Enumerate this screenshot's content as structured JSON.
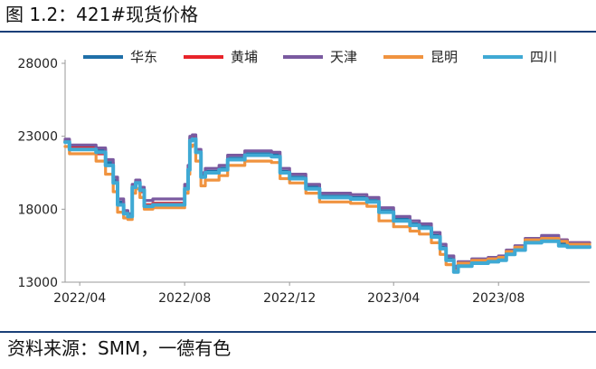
{
  "figure": {
    "title": "图 1.2：421#现货价格",
    "source": "资料来源：SMM，一德有色"
  },
  "chart_data": {
    "type": "line",
    "xlabel": "",
    "ylabel": "",
    "x_range": [
      "2022-03-15",
      "2023-11-15"
    ],
    "x_ticks": [
      "2022/04",
      "2022/08",
      "2022/12",
      "2023/04",
      "2023/08"
    ],
    "x_tick_dates": [
      "2022-04-01",
      "2022-08-01",
      "2022-12-01",
      "2023-04-01",
      "2023-08-01"
    ],
    "ylim": [
      13000,
      28000
    ],
    "y_ticks": [
      "28000",
      "23000",
      "18000",
      "13000"
    ],
    "y_tick_values": [
      28000,
      23000,
      18000,
      13000
    ],
    "legend_position": "top",
    "series": [
      {
        "name": "华东",
        "color": "#1f6fa8",
        "points": [
          [
            "2022-03-15",
            22700
          ],
          [
            "2022-03-20",
            22300
          ],
          [
            "2022-04-20",
            22100
          ],
          [
            "2022-05-01",
            21200
          ],
          [
            "2022-05-10",
            20000
          ],
          [
            "2022-05-15",
            18500
          ],
          [
            "2022-05-22",
            17800
          ],
          [
            "2022-05-27",
            17600
          ],
          [
            "2022-06-01",
            19600
          ],
          [
            "2022-06-05",
            19900
          ],
          [
            "2022-06-10",
            19400
          ],
          [
            "2022-06-15",
            18300
          ],
          [
            "2022-06-25",
            18400
          ],
          [
            "2022-07-27",
            18400
          ],
          [
            "2022-08-01",
            19500
          ],
          [
            "2022-08-05",
            20800
          ],
          [
            "2022-08-07",
            22900
          ],
          [
            "2022-08-10",
            23000
          ],
          [
            "2022-08-14",
            22000
          ],
          [
            "2022-08-20",
            20300
          ],
          [
            "2022-08-25",
            20600
          ],
          [
            "2022-09-10",
            20800
          ],
          [
            "2022-09-20",
            21500
          ],
          [
            "2022-10-10",
            21800
          ],
          [
            "2022-11-10",
            21700
          ],
          [
            "2022-11-20",
            20600
          ],
          [
            "2022-12-01",
            20200
          ],
          [
            "2022-12-20",
            19500
          ],
          [
            "2023-01-05",
            18900
          ],
          [
            "2023-02-10",
            18800
          ],
          [
            "2023-03-01",
            18600
          ],
          [
            "2023-03-15",
            17900
          ],
          [
            "2023-04-01",
            17300
          ],
          [
            "2023-04-20",
            17000
          ],
          [
            "2023-05-01",
            16800
          ],
          [
            "2023-05-15",
            16200
          ],
          [
            "2023-05-25",
            15400
          ],
          [
            "2023-06-01",
            14600
          ],
          [
            "2023-06-10",
            13900
          ],
          [
            "2023-06-15",
            14200
          ],
          [
            "2023-07-01",
            14400
          ],
          [
            "2023-07-20",
            14500
          ],
          [
            "2023-08-01",
            14600
          ],
          [
            "2023-08-10",
            15000
          ],
          [
            "2023-08-20",
            15300
          ],
          [
            "2023-09-01",
            15800
          ],
          [
            "2023-09-20",
            16000
          ],
          [
            "2023-10-10",
            15700
          ],
          [
            "2023-10-20",
            15500
          ],
          [
            "2023-11-15",
            15500
          ]
        ]
      },
      {
        "name": "黄埔",
        "color": "#e8242a",
        "points": [
          [
            "2022-03-15",
            22700
          ],
          [
            "2022-03-20",
            22200
          ],
          [
            "2022-04-20",
            21800
          ],
          [
            "2022-05-01",
            21000
          ],
          [
            "2022-05-10",
            19800
          ],
          [
            "2022-05-15",
            18300
          ],
          [
            "2022-05-22",
            17700
          ],
          [
            "2022-05-27",
            17500
          ],
          [
            "2022-06-01",
            19500
          ],
          [
            "2022-06-05",
            19800
          ],
          [
            "2022-06-10",
            19200
          ],
          [
            "2022-06-15",
            18300
          ],
          [
            "2022-06-25",
            18400
          ],
          [
            "2022-07-27",
            18400
          ],
          [
            "2022-08-01",
            19400
          ],
          [
            "2022-08-05",
            20700
          ],
          [
            "2022-08-07",
            22800
          ],
          [
            "2022-08-10",
            22900
          ],
          [
            "2022-08-14",
            21900
          ],
          [
            "2022-08-20",
            20200
          ],
          [
            "2022-08-25",
            20500
          ],
          [
            "2022-09-10",
            20700
          ],
          [
            "2022-09-20",
            21400
          ],
          [
            "2022-10-10",
            21700
          ],
          [
            "2022-11-10",
            21600
          ],
          [
            "2022-11-20",
            20500
          ],
          [
            "2022-12-01",
            20100
          ],
          [
            "2022-12-20",
            19400
          ],
          [
            "2023-01-05",
            18800
          ],
          [
            "2023-02-10",
            18700
          ],
          [
            "2023-03-01",
            18500
          ],
          [
            "2023-03-15",
            17800
          ],
          [
            "2023-04-01",
            17200
          ],
          [
            "2023-04-20",
            16900
          ],
          [
            "2023-05-01",
            16700
          ],
          [
            "2023-05-15",
            16100
          ],
          [
            "2023-05-25",
            15300
          ],
          [
            "2023-06-01",
            14500
          ],
          [
            "2023-06-10",
            13900
          ],
          [
            "2023-06-15",
            14200
          ],
          [
            "2023-07-01",
            14400
          ],
          [
            "2023-07-20",
            14500
          ],
          [
            "2023-08-01",
            14600
          ],
          [
            "2023-08-10",
            15000
          ],
          [
            "2023-08-20",
            15300
          ],
          [
            "2023-09-01",
            15900
          ],
          [
            "2023-09-20",
            16100
          ],
          [
            "2023-10-10",
            15900
          ],
          [
            "2023-10-20",
            15700
          ],
          [
            "2023-11-15",
            15700
          ]
        ]
      },
      {
        "name": "天津",
        "color": "#7a5aa0",
        "points": [
          [
            "2022-03-15",
            22800
          ],
          [
            "2022-03-20",
            22400
          ],
          [
            "2022-04-20",
            22200
          ],
          [
            "2022-05-01",
            21400
          ],
          [
            "2022-05-10",
            20200
          ],
          [
            "2022-05-15",
            18700
          ],
          [
            "2022-05-22",
            17900
          ],
          [
            "2022-05-27",
            17700
          ],
          [
            "2022-06-01",
            19700
          ],
          [
            "2022-06-05",
            20000
          ],
          [
            "2022-06-10",
            19500
          ],
          [
            "2022-06-15",
            18600
          ],
          [
            "2022-06-25",
            18700
          ],
          [
            "2022-07-27",
            18700
          ],
          [
            "2022-08-01",
            19700
          ],
          [
            "2022-08-05",
            21000
          ],
          [
            "2022-08-07",
            23000
          ],
          [
            "2022-08-10",
            23100
          ],
          [
            "2022-08-14",
            22100
          ],
          [
            "2022-08-20",
            20500
          ],
          [
            "2022-08-25",
            20800
          ],
          [
            "2022-09-10",
            21000
          ],
          [
            "2022-09-20",
            21700
          ],
          [
            "2022-10-10",
            22000
          ],
          [
            "2022-11-10",
            21900
          ],
          [
            "2022-11-20",
            20800
          ],
          [
            "2022-12-01",
            20400
          ],
          [
            "2022-12-20",
            19700
          ],
          [
            "2023-01-05",
            19100
          ],
          [
            "2023-02-10",
            19000
          ],
          [
            "2023-03-01",
            18800
          ],
          [
            "2023-03-15",
            18100
          ],
          [
            "2023-04-01",
            17500
          ],
          [
            "2023-04-20",
            17200
          ],
          [
            "2023-05-01",
            17000
          ],
          [
            "2023-05-15",
            16400
          ],
          [
            "2023-05-25",
            15600
          ],
          [
            "2023-06-01",
            14800
          ],
          [
            "2023-06-10",
            14100
          ],
          [
            "2023-06-15",
            14400
          ],
          [
            "2023-07-01",
            14600
          ],
          [
            "2023-07-20",
            14700
          ],
          [
            "2023-08-01",
            14800
          ],
          [
            "2023-08-10",
            15200
          ],
          [
            "2023-08-20",
            15500
          ],
          [
            "2023-09-01",
            16000
          ],
          [
            "2023-09-20",
            16200
          ],
          [
            "2023-10-10",
            15900
          ],
          [
            "2023-10-20",
            15700
          ],
          [
            "2023-11-15",
            15700
          ]
        ]
      },
      {
        "name": "昆明",
        "color": "#f0933f",
        "points": [
          [
            "2022-03-15",
            22300
          ],
          [
            "2022-03-20",
            21800
          ],
          [
            "2022-04-20",
            21300
          ],
          [
            "2022-05-01",
            20400
          ],
          [
            "2022-05-10",
            19200
          ],
          [
            "2022-05-15",
            17800
          ],
          [
            "2022-05-22",
            17400
          ],
          [
            "2022-05-27",
            17300
          ],
          [
            "2022-06-01",
            19100
          ],
          [
            "2022-06-05",
            19400
          ],
          [
            "2022-06-10",
            18800
          ],
          [
            "2022-06-15",
            18000
          ],
          [
            "2022-06-25",
            18100
          ],
          [
            "2022-07-27",
            18100
          ],
          [
            "2022-08-01",
            19100
          ],
          [
            "2022-08-05",
            20400
          ],
          [
            "2022-08-07",
            22300
          ],
          [
            "2022-08-10",
            22400
          ],
          [
            "2022-08-14",
            21300
          ],
          [
            "2022-08-20",
            19600
          ],
          [
            "2022-08-25",
            20000
          ],
          [
            "2022-09-10",
            20300
          ],
          [
            "2022-09-20",
            21000
          ],
          [
            "2022-10-10",
            21300
          ],
          [
            "2022-11-10",
            21200
          ],
          [
            "2022-11-20",
            20100
          ],
          [
            "2022-12-01",
            19800
          ],
          [
            "2022-12-20",
            19100
          ],
          [
            "2023-01-05",
            18500
          ],
          [
            "2023-02-10",
            18400
          ],
          [
            "2023-03-01",
            18200
          ],
          [
            "2023-03-15",
            17200
          ],
          [
            "2023-04-01",
            16800
          ],
          [
            "2023-04-20",
            16500
          ],
          [
            "2023-05-01",
            16300
          ],
          [
            "2023-05-15",
            15700
          ],
          [
            "2023-05-25",
            14900
          ],
          [
            "2023-06-01",
            14200
          ],
          [
            "2023-06-10",
            13800
          ],
          [
            "2023-06-15",
            14300
          ],
          [
            "2023-07-01",
            14500
          ],
          [
            "2023-07-20",
            14600
          ],
          [
            "2023-08-01",
            14700
          ],
          [
            "2023-08-10",
            15100
          ],
          [
            "2023-08-20",
            15400
          ],
          [
            "2023-09-01",
            15900
          ],
          [
            "2023-09-20",
            16000
          ],
          [
            "2023-10-10",
            15800
          ],
          [
            "2023-10-20",
            15600
          ],
          [
            "2023-11-15",
            15600
          ]
        ]
      },
      {
        "name": "四川",
        "color": "#3fa9d4",
        "points": [
          [
            "2022-03-15",
            22600
          ],
          [
            "2022-03-20",
            22100
          ],
          [
            "2022-04-20",
            21900
          ],
          [
            "2022-05-01",
            21000
          ],
          [
            "2022-05-10",
            19800
          ],
          [
            "2022-05-15",
            18300
          ],
          [
            "2022-05-22",
            17700
          ],
          [
            "2022-05-27",
            17500
          ],
          [
            "2022-06-01",
            19500
          ],
          [
            "2022-06-05",
            19800
          ],
          [
            "2022-06-10",
            19300
          ],
          [
            "2022-06-15",
            18200
          ],
          [
            "2022-06-25",
            18300
          ],
          [
            "2022-07-27",
            18300
          ],
          [
            "2022-08-01",
            19400
          ],
          [
            "2022-08-05",
            20700
          ],
          [
            "2022-08-07",
            22700
          ],
          [
            "2022-08-10",
            22800
          ],
          [
            "2022-08-14",
            21900
          ],
          [
            "2022-08-20",
            20200
          ],
          [
            "2022-08-25",
            20500
          ],
          [
            "2022-09-10",
            20700
          ],
          [
            "2022-09-20",
            21400
          ],
          [
            "2022-10-10",
            21700
          ],
          [
            "2022-11-10",
            21600
          ],
          [
            "2022-11-20",
            20500
          ],
          [
            "2022-12-01",
            20100
          ],
          [
            "2022-12-20",
            19400
          ],
          [
            "2023-01-05",
            18800
          ],
          [
            "2023-02-10",
            18700
          ],
          [
            "2023-03-01",
            18500
          ],
          [
            "2023-03-15",
            17800
          ],
          [
            "2023-04-01",
            17200
          ],
          [
            "2023-04-20",
            16900
          ],
          [
            "2023-05-01",
            16700
          ],
          [
            "2023-05-15",
            16100
          ],
          [
            "2023-05-25",
            15300
          ],
          [
            "2023-06-01",
            14500
          ],
          [
            "2023-06-10",
            13700
          ],
          [
            "2023-06-15",
            14100
          ],
          [
            "2023-07-01",
            14300
          ],
          [
            "2023-07-20",
            14400
          ],
          [
            "2023-08-01",
            14500
          ],
          [
            "2023-08-10",
            14900
          ],
          [
            "2023-08-20",
            15200
          ],
          [
            "2023-09-01",
            15700
          ],
          [
            "2023-09-20",
            15800
          ],
          [
            "2023-10-10",
            15500
          ],
          [
            "2023-10-20",
            15400
          ],
          [
            "2023-11-15",
            15400
          ]
        ]
      }
    ]
  }
}
